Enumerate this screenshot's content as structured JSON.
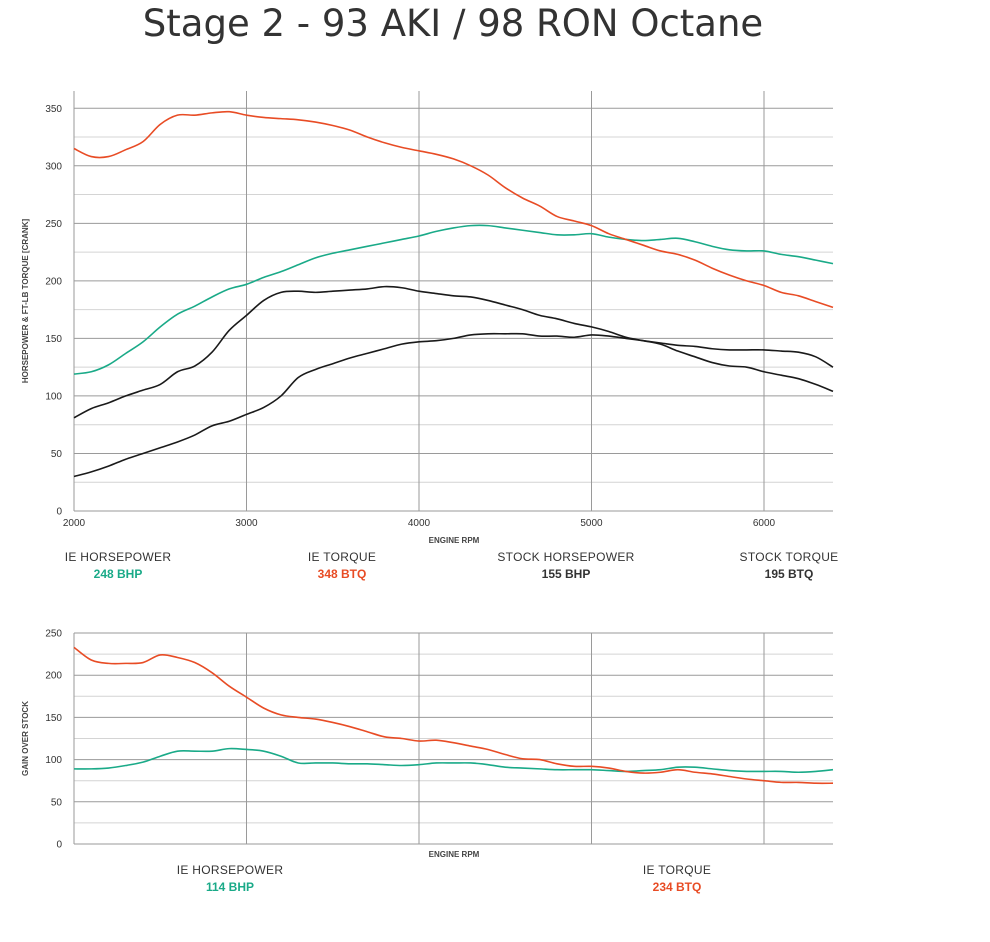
{
  "title": "Stage 2 - 93 AKI / 98 RON Octane",
  "colors": {
    "ie_hp": "#1aaa88",
    "ie_tq": "#e84c25",
    "stock": "#1a1a1a",
    "grid_major": "#9a9a9a",
    "grid_minor": "#d4d4d4"
  },
  "chart_data": [
    {
      "type": "line",
      "ylabel": "HORSEPOWER & FT-LB TORQUE [CRANK]",
      "xlabel": "ENGINE RPM",
      "xlim": [
        2000,
        6400
      ],
      "ylim": [
        0,
        365
      ],
      "xticks": [
        2000,
        3000,
        4000,
        5000,
        6000
      ],
      "yticks": [
        0,
        50,
        100,
        150,
        200,
        250,
        300,
        350
      ],
      "x": [
        2000,
        2100,
        2200,
        2300,
        2400,
        2500,
        2600,
        2700,
        2800,
        2900,
        3000,
        3100,
        3200,
        3300,
        3400,
        3500,
        3600,
        3700,
        3800,
        3900,
        4000,
        4100,
        4200,
        4300,
        4400,
        4500,
        4600,
        4700,
        4800,
        4900,
        5000,
        5100,
        5200,
        5300,
        5400,
        5500,
        5600,
        5700,
        5800,
        5900,
        6000,
        6100,
        6200,
        6300,
        6400
      ],
      "series": [
        {
          "name": "IE HORSEPOWER",
          "color": "#1aaa88",
          "values": [
            119,
            121,
            127,
            137,
            147,
            160,
            171,
            178,
            186,
            193,
            197,
            203,
            208,
            214,
            220,
            224,
            227,
            230,
            233,
            236,
            239,
            243,
            246,
            248,
            248,
            246,
            244,
            242,
            240,
            240,
            241,
            238,
            236,
            235,
            236,
            237,
            234,
            230,
            227,
            226,
            226,
            223,
            221,
            218,
            215
          ]
        },
        {
          "name": "IE TORQUE",
          "color": "#e84c25",
          "values": [
            315,
            308,
            308,
            314,
            321,
            336,
            344,
            344,
            346,
            347,
            344,
            342,
            341,
            340,
            338,
            335,
            331,
            325,
            320,
            316,
            313,
            310,
            306,
            300,
            292,
            281,
            272,
            265,
            256,
            252,
            248,
            241,
            236,
            231,
            226,
            223,
            218,
            211,
            205,
            200,
            196,
            190,
            187,
            182,
            177
          ]
        },
        {
          "name": "STOCK HORSEPOWER",
          "color": "#1a1a1a",
          "values": [
            30,
            34,
            39,
            45,
            50,
            55,
            60,
            66,
            74,
            78,
            84,
            90,
            100,
            116,
            123,
            128,
            133,
            137,
            141,
            145,
            147,
            148,
            150,
            153,
            154,
            154,
            154,
            152,
            152,
            151,
            153,
            152,
            150,
            148,
            146,
            144,
            143,
            141,
            140,
            140,
            140,
            139,
            138,
            134,
            125
          ]
        },
        {
          "name": "STOCK TORQUE",
          "color": "#1a1a1a",
          "values": [
            81,
            89,
            94,
            100,
            105,
            110,
            121,
            126,
            138,
            157,
            170,
            183,
            190,
            191,
            190,
            191,
            192,
            193,
            195,
            194,
            191,
            189,
            187,
            186,
            183,
            179,
            175,
            170,
            167,
            163,
            160,
            156,
            151,
            148,
            145,
            139,
            134,
            129,
            126,
            125,
            121,
            118,
            115,
            110,
            104
          ]
        }
      ]
    },
    {
      "type": "line",
      "ylabel": "GAIN OVER STOCK",
      "xlabel": "ENGINE RPM",
      "xlim": [
        2000,
        6400
      ],
      "ylim": [
        0,
        250
      ],
      "xticks": [
        2000,
        3000,
        4000,
        5000,
        6000
      ],
      "yticks": [
        0,
        50,
        100,
        150,
        200,
        250
      ],
      "x": [
        2000,
        2100,
        2200,
        2300,
        2400,
        2500,
        2600,
        2700,
        2800,
        2900,
        3000,
        3100,
        3200,
        3300,
        3400,
        3500,
        3600,
        3700,
        3800,
        3900,
        4000,
        4100,
        4200,
        4300,
        4400,
        4500,
        4600,
        4700,
        4800,
        4900,
        5000,
        5100,
        5200,
        5300,
        5400,
        5500,
        5600,
        5700,
        5800,
        5900,
        6000,
        6100,
        6200,
        6300,
        6400
      ],
      "series": [
        {
          "name": "IE HORSEPOWER",
          "color": "#1aaa88",
          "values": [
            89,
            89,
            90,
            93,
            97,
            104,
            110,
            110,
            110,
            113,
            112,
            110,
            104,
            96,
            96,
            96,
            95,
            95,
            94,
            93,
            94,
            96,
            96,
            96,
            94,
            91,
            90,
            89,
            88,
            88,
            88,
            87,
            86,
            87,
            88,
            91,
            91,
            89,
            87,
            86,
            86,
            86,
            85,
            86,
            88
          ]
        },
        {
          "name": "IE TORQUE",
          "color": "#e84c25",
          "values": [
            233,
            218,
            214,
            214,
            215,
            224,
            221,
            215,
            203,
            187,
            174,
            161,
            153,
            150,
            148,
            144,
            139,
            133,
            127,
            125,
            122,
            123,
            120,
            116,
            112,
            106,
            101,
            100,
            95,
            92,
            92,
            90,
            86,
            84,
            85,
            88,
            85,
            83,
            80,
            77,
            75,
            73,
            73,
            72,
            72
          ]
        }
      ]
    }
  ],
  "top_legend": [
    {
      "name": "IE HORSEPOWER",
      "value": "248 BHP",
      "color": "#1aaa88"
    },
    {
      "name": "IE TORQUE",
      "value": "348 BTQ",
      "color": "#e84c25"
    },
    {
      "name": "STOCK HORSEPOWER",
      "value": "155 BHP",
      "color": "#333333"
    },
    {
      "name": "STOCK TORQUE",
      "value": "195 BTQ",
      "color": "#333333"
    }
  ],
  "bottom_legend": [
    {
      "name": "IE HORSEPOWER",
      "value": "114 BHP",
      "color": "#1aaa88"
    },
    {
      "name": "IE TORQUE",
      "value": "234 BTQ",
      "color": "#e84c25"
    }
  ]
}
